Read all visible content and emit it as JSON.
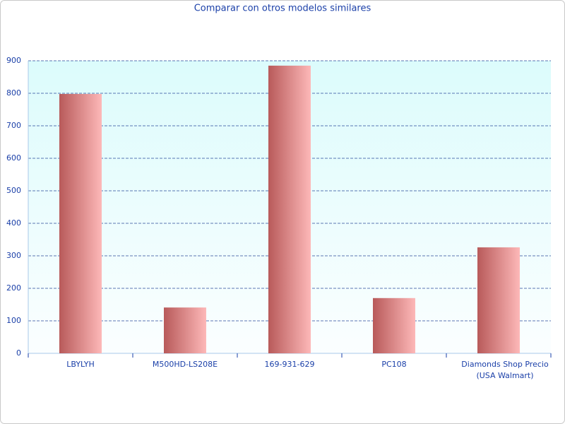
{
  "chart_data": {
    "type": "bar",
    "title": "Comparar con otros modelos similares",
    "categories": [
      "LBYLYH",
      "M500HD-LS208E",
      "169-931-629",
      "PC108",
      "Diamonds Shop Precio (USA Walmart)"
    ],
    "values": [
      798,
      141,
      885,
      170,
      326
    ],
    "color": "#d98888",
    "ylim": [
      0,
      900
    ],
    "yticks": [
      0,
      100,
      200,
      300,
      400,
      500,
      600,
      700,
      800,
      900
    ],
    "grid": true
  }
}
